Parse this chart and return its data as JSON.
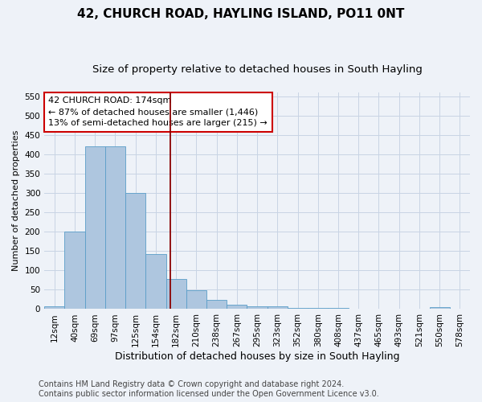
{
  "title": "42, CHURCH ROAD, HAYLING ISLAND, PO11 0NT",
  "subtitle": "Size of property relative to detached houses in South Hayling",
  "xlabel": "Distribution of detached houses by size in South Hayling",
  "ylabel": "Number of detached properties",
  "categories": [
    "12sqm",
    "40sqm",
    "69sqm",
    "97sqm",
    "125sqm",
    "154sqm",
    "182sqm",
    "210sqm",
    "238sqm",
    "267sqm",
    "295sqm",
    "323sqm",
    "352sqm",
    "380sqm",
    "408sqm",
    "437sqm",
    "465sqm",
    "493sqm",
    "521sqm",
    "550sqm",
    "578sqm"
  ],
  "values": [
    8,
    200,
    420,
    420,
    300,
    143,
    77,
    48,
    23,
    12,
    8,
    7,
    2,
    2,
    2,
    0,
    0,
    0,
    0,
    5,
    0
  ],
  "bar_color": "#aec6df",
  "bar_edge_color": "#5a9ec8",
  "grid_color": "#c8d4e4",
  "background_color": "#eef2f8",
  "property_line_color": "#8b0000",
  "annotation_text": "42 CHURCH ROAD: 174sqm\n← 87% of detached houses are smaller (1,446)\n13% of semi-detached houses are larger (215) →",
  "annotation_box_color": "#ffffff",
  "annotation_box_edge": "#cc0000",
  "ylim": [
    0,
    560
  ],
  "yticks": [
    0,
    50,
    100,
    150,
    200,
    250,
    300,
    350,
    400,
    450,
    500,
    550
  ],
  "footer_line1": "Contains HM Land Registry data © Crown copyright and database right 2024.",
  "footer_line2": "Contains public sector information licensed under the Open Government Licence v3.0.",
  "title_fontsize": 11,
  "subtitle_fontsize": 9.5,
  "xlabel_fontsize": 9,
  "ylabel_fontsize": 8,
  "tick_fontsize": 7.5,
  "annotation_fontsize": 8,
  "footer_fontsize": 7
}
